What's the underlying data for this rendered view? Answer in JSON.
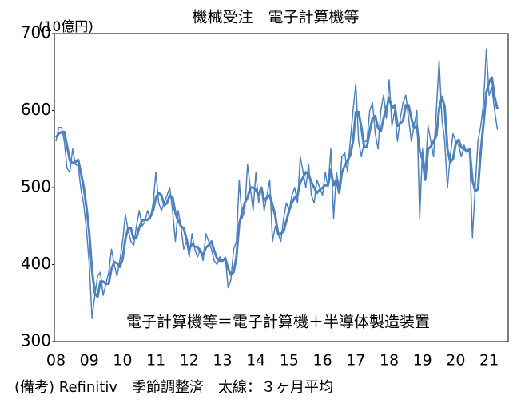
{
  "chart_data": {
    "type": "line",
    "title": "機械受注　電子計算機等",
    "y_unit_label": "(10億円)",
    "annotation": "電子計算機等＝電子計算機＋半導体製造装置",
    "note": "(備考) Refinitiv　季節調整済　太線：３ヶ月平均",
    "categories": [
      "08",
      null,
      null,
      null,
      null,
      null,
      null,
      null,
      null,
      null,
      null,
      null,
      "09",
      null,
      null,
      null,
      null,
      null,
      null,
      null,
      null,
      null,
      null,
      null,
      "10",
      null,
      null,
      null,
      null,
      null,
      null,
      null,
      null,
      null,
      null,
      null,
      "11",
      null,
      null,
      null,
      null,
      null,
      null,
      null,
      null,
      null,
      null,
      null,
      "12",
      null,
      null,
      null,
      null,
      null,
      null,
      null,
      null,
      null,
      null,
      null,
      "13",
      null,
      null,
      null,
      null,
      null,
      null,
      null,
      null,
      null,
      null,
      null,
      "14",
      null,
      null,
      null,
      null,
      null,
      null,
      null,
      null,
      null,
      null,
      null,
      "15",
      null,
      null,
      null,
      null,
      null,
      null,
      null,
      null,
      null,
      null,
      null,
      "16",
      null,
      null,
      null,
      null,
      null,
      null,
      null,
      null,
      null,
      null,
      null,
      "17",
      null,
      null,
      null,
      null,
      null,
      null,
      null,
      null,
      null,
      null,
      null,
      "18",
      null,
      null,
      null,
      null,
      null,
      null,
      null,
      null,
      null,
      null,
      null,
      "19",
      null,
      null,
      null,
      null,
      null,
      null,
      null,
      null,
      null,
      null,
      null,
      "20",
      null,
      null,
      null,
      null,
      null,
      null,
      null,
      null,
      null,
      null,
      null,
      "21",
      null,
      null,
      null
    ],
    "series": [
      {
        "color": "#4f81bd",
        "linewidth": 1.5,
        "values": [
          560,
          578,
          578,
          560,
          525,
          520,
          550,
          530,
          528,
          498,
          478,
          445,
          400,
          330,
          360,
          385,
          390,
          360,
          375,
          390,
          420,
          400,
          385,
          405,
          430,
          465,
          445,
          430,
          425,
          450,
          470,
          450,
          455,
          470,
          460,
          480,
          520,
          480,
          470,
          480,
          490,
          500,
          470,
          430,
          470,
          450,
          420,
          430,
          410,
          440,
          420,
          410,
          420,
          405,
          440,
          430,
          420,
          405,
          400,
          410,
          405,
          410,
          370,
          380,
          420,
          430,
          510,
          460,
          470,
          530,
          500,
          470,
          520,
          480,
          500,
          470,
          490,
          510,
          430,
          450,
          440,
          430,
          460,
          480,
          470,
          490,
          500,
          480,
          540,
          520,
          500,
          530,
          490,
          480,
          510,
          500,
          490,
          520,
          500,
          550,
          460,
          520,
          500,
          540,
          545,
          520,
          560,
          600,
          635,
          560,
          540,
          560,
          560,
          600,
          610,
          570,
          550,
          600,
          620,
          590,
          640,
          580,
          600,
          560,
          590,
          610,
          620,
          590,
          560,
          580,
          600,
          460,
          550,
          520,
          580,
          560,
          540,
          600,
          665,
          590,
          560,
          500,
          540,
          570,
          560,
          555,
          540,
          555,
          545,
          550,
          435,
          500,
          560,
          580,
          610,
          680,
          620,
          630,
          600,
          575
        ]
      },
      {
        "color": "#4f81bd",
        "linewidth": 3,
        "values": [
          565,
          570,
          572,
          572,
          554,
          535,
          532,
          533,
          536,
          519,
          501,
          474,
          441,
          392,
          363,
          358,
          378,
          378,
          375,
          375,
          395,
          403,
          402,
          397,
          407,
          433,
          447,
          447,
          433,
          435,
          448,
          457,
          458,
          458,
          462,
          470,
          487,
          493,
          490,
          477,
          480,
          490,
          487,
          467,
          457,
          450,
          447,
          433,
          420,
          427,
          423,
          423,
          417,
          412,
          422,
          425,
          430,
          418,
          408,
          405,
          405,
          408,
          395,
          387,
          390,
          410,
          453,
          467,
          480,
          487,
          500,
          500,
          497,
          490,
          500,
          483,
          487,
          490,
          477,
          463,
          440,
          440,
          443,
          457,
          470,
          480,
          487,
          490,
          507,
          513,
          520,
          517,
          507,
          500,
          493,
          497,
          500,
          503,
          503,
          523,
          503,
          510,
          493,
          520,
          528,
          535,
          542,
          560,
          598,
          598,
          578,
          553,
          553,
          573,
          590,
          593,
          577,
          573,
          590,
          603,
          617,
          603,
          607,
          580,
          583,
          587,
          607,
          607,
          590,
          577,
          580,
          547,
          537,
          510,
          550,
          553,
          560,
          567,
          602,
          618,
          605,
          550,
          533,
          537,
          557,
          562,
          552,
          550,
          547,
          550,
          510,
          495,
          498,
          547,
          583,
          623,
          637,
          643,
          617,
          602
        ]
      }
    ],
    "ylim": [
      300,
      700
    ],
    "yticks": [
      300,
      400,
      500,
      600,
      700
    ],
    "grid": false
  }
}
